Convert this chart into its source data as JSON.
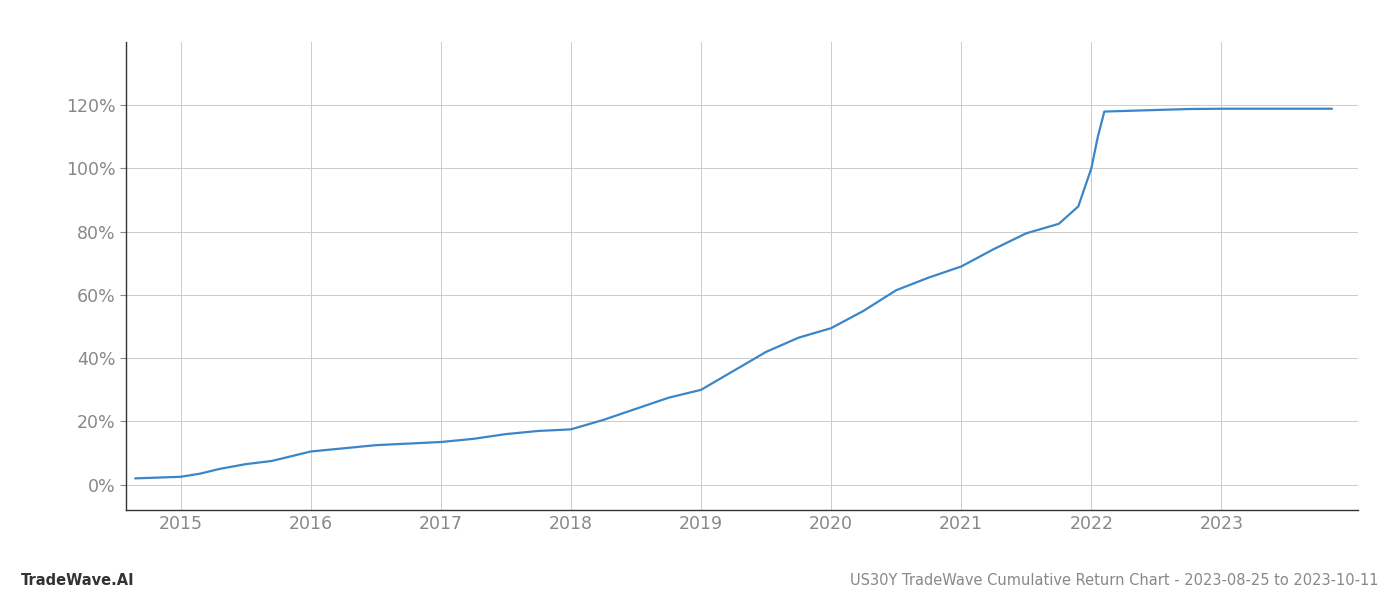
{
  "title": "",
  "footer_left": "TradeWave.AI",
  "footer_right": "US30Y TradeWave Cumulative Return Chart - 2023-08-25 to 2023-10-11",
  "line_color": "#3a86c8",
  "background_color": "#ffffff",
  "grid_color": "#cccccc",
  "x_years": [
    2015,
    2016,
    2017,
    2018,
    2019,
    2020,
    2021,
    2022,
    2023
  ],
  "data_x": [
    2014.65,
    2015.0,
    2015.15,
    2015.3,
    2015.5,
    2015.7,
    2015.85,
    2016.0,
    2016.25,
    2016.5,
    2016.75,
    2017.0,
    2017.25,
    2017.5,
    2017.75,
    2018.0,
    2018.25,
    2018.5,
    2018.75,
    2019.0,
    2019.25,
    2019.5,
    2019.75,
    2020.0,
    2020.25,
    2020.5,
    2020.75,
    2021.0,
    2021.25,
    2021.5,
    2021.75,
    2021.9,
    2022.0,
    2022.05,
    2022.1,
    2022.5,
    2022.75,
    2023.0,
    2023.25,
    2023.5,
    2023.75,
    2023.85
  ],
  "data_y": [
    2.0,
    2.5,
    3.5,
    5.0,
    6.5,
    7.5,
    9.0,
    10.5,
    11.5,
    12.5,
    13.0,
    13.5,
    14.5,
    16.0,
    17.0,
    17.5,
    20.5,
    24.0,
    27.5,
    30.0,
    36.0,
    42.0,
    46.5,
    49.5,
    55.0,
    61.5,
    65.5,
    69.0,
    74.5,
    79.5,
    82.5,
    88.0,
    100.0,
    110.0,
    118.0,
    118.5,
    118.8,
    118.9,
    118.9,
    118.9,
    118.9,
    118.9
  ],
  "ylim": [
    -8,
    140
  ],
  "xlim": [
    2014.58,
    2024.05
  ],
  "yticks": [
    0,
    20,
    40,
    60,
    80,
    100,
    120
  ],
  "line_width": 1.6,
  "figsize": [
    14.0,
    6.0
  ],
  "dpi": 100,
  "font_color": "#888888",
  "axis_color": "#333333",
  "footer_fontsize": 10.5,
  "tick_fontsize": 12.5
}
